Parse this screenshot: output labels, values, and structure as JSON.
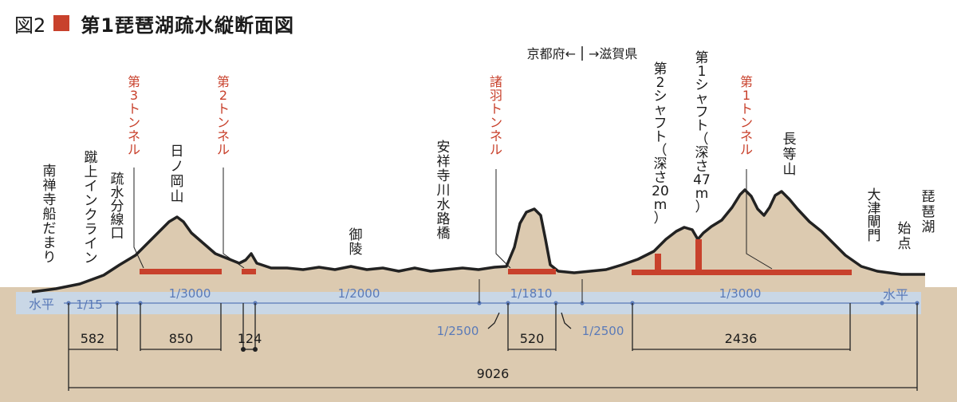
{
  "figure": {
    "number": "図2",
    "title": "第1琵琶湖疏水縦断面図"
  },
  "colors": {
    "ground": "#dccab0",
    "water": "#c9d7e6",
    "outline": "#222222",
    "tunnel": "#c8412c",
    "dim_line": "#5a7ab8"
  },
  "boundary": {
    "left": "京都府←",
    "right": "→滋賀県"
  },
  "tunnels": [
    {
      "lines": [
        "第",
        "3",
        "ト",
        "ン",
        "ネ",
        "ル"
      ]
    },
    {
      "lines": [
        "第",
        "2",
        "ト",
        "ン",
        "ネ",
        "ル"
      ]
    },
    {
      "lines": [
        "諸",
        "羽",
        "ト",
        "ン",
        "ネ",
        "ル"
      ]
    },
    {
      "lines": [
        "第",
        "1",
        "ト",
        "ン",
        "ネ",
        "ル"
      ]
    }
  ],
  "places": [
    {
      "lines": [
        "南",
        "禅",
        "寺",
        "船",
        "だ",
        "ま",
        "り"
      ]
    },
    {
      "lines": [
        "蹴",
        "上",
        "イ",
        "ン",
        "ク",
        "ラ",
        "イ",
        "ン"
      ]
    },
    {
      "lines": [
        "疏",
        "水",
        "分",
        "線",
        "口"
      ]
    },
    {
      "lines": [
        "日",
        "ノ",
        "岡",
        "山"
      ]
    },
    {
      "lines": [
        "御",
        "陵"
      ]
    },
    {
      "lines": [
        "安",
        "祥",
        "寺",
        "川",
        "水",
        "路",
        "橋"
      ]
    },
    {
      "lines": [
        "第",
        "2",
        "シ",
        "ャ",
        "フ",
        "ト",
        "（",
        "深",
        "さ",
        "20",
        "m",
        "）"
      ]
    },
    {
      "lines": [
        "第",
        "1",
        "シ",
        "ャ",
        "フ",
        "ト",
        "（",
        "深",
        "さ",
        "47",
        "m",
        "）"
      ]
    },
    {
      "lines": [
        "長",
        "等",
        "山"
      ]
    },
    {
      "lines": [
        "大",
        "津",
        "閘",
        "門"
      ]
    },
    {
      "lines": [
        "始",
        "点"
      ]
    },
    {
      "lines": [
        "琵",
        "琶",
        "湖"
      ]
    }
  ],
  "water_labels": [
    "水平",
    "水平"
  ],
  "gradients": [
    "1/15",
    "1/3000",
    "1/2000",
    "1/1810",
    "1/3000",
    "1/2500",
    "1/2500"
  ],
  "distances": [
    "582",
    "850",
    "124",
    "520",
    "2436",
    "9026"
  ]
}
